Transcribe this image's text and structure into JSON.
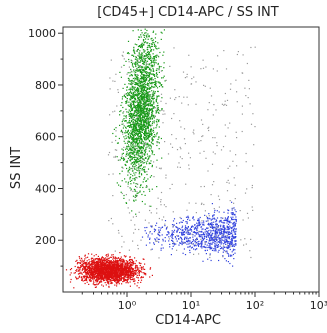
{
  "chart_data": {
    "type": "scatter",
    "title": "[CD45+] CD14-APC / SS INT",
    "xlabel": "CD14-APC",
    "ylabel": "SS INT",
    "x_scale": "log",
    "xlim": [
      0.1,
      1000
    ],
    "ylim": [
      0,
      1024
    ],
    "x_ticks": [
      {
        "value": 1,
        "label": "10⁰"
      },
      {
        "value": 10,
        "label": "10¹"
      },
      {
        "value": 100,
        "label": "10²"
      },
      {
        "value": 1000,
        "label": "10³"
      }
    ],
    "y_ticks": [
      {
        "value": 200,
        "label": "200"
      },
      {
        "value": 400,
        "label": "400"
      },
      {
        "value": 600,
        "label": "600"
      },
      {
        "value": 800,
        "label": "800"
      },
      {
        "value": 1000,
        "label": "1000"
      }
    ],
    "grid": false,
    "series": [
      {
        "color": "#dd1111",
        "x_range": [
          0.18,
          1.5
        ],
        "y_range": [
          40,
          130
        ],
        "density": "high"
      },
      {
        "color": "#1a9a1a",
        "x_range": [
          0.9,
          3.0
        ],
        "y_range": [
          430,
          1000
        ],
        "density": "high"
      },
      {
        "color": "#3344dd",
        "x_range": [
          1.5,
          50
        ],
        "y_range": [
          150,
          300
        ],
        "density": "medium"
      },
      {
        "color": "#9a9a9a",
        "x_range": [
          0.5,
          100
        ],
        "y_range": [
          130,
          950
        ],
        "density": "low"
      }
    ]
  }
}
